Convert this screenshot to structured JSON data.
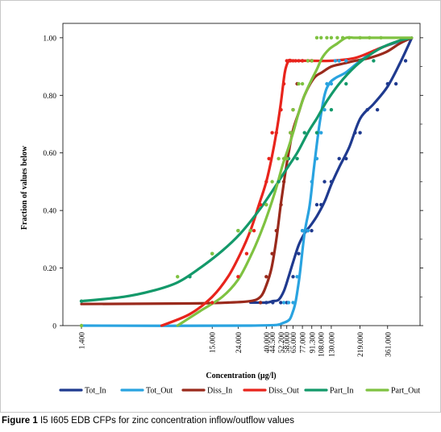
{
  "caption": {
    "label": "Figure 1",
    "text": "I5 I605 EDB CFPs for zinc concentration inflow/outflow values"
  },
  "chart_data": {
    "type": "line",
    "xlabel": "Concentration (µg/l)",
    "ylabel": "Fraction of values below",
    "x_scale": "log",
    "xlim": [
      1.0,
      650
    ],
    "ylim": [
      0,
      1.05
    ],
    "y_ticks": [
      "0",
      "0.20",
      "0.40",
      "0.60",
      "0.80",
      "1.00"
    ],
    "y_tick_values": [
      0,
      0.2,
      0.4,
      0.6,
      0.8,
      1.0
    ],
    "x_ticks": [
      "1.400",
      "15.000",
      "24.000",
      "40.000",
      "44.500",
      "52.200",
      "58.000",
      "65.000",
      "77.000",
      "91.300",
      "108.000",
      "130.000",
      "219.000",
      "361.000"
    ],
    "x_tick_values": [
      1.4,
      15,
      24,
      40,
      44.5,
      52.2,
      58,
      65,
      77,
      91.3,
      108,
      130,
      219,
      361
    ],
    "grid": false,
    "legend_position": "bottom",
    "series": [
      {
        "name": "Tot_In",
        "color": "#1f3a8f",
        "x": [
          30,
          40,
          45,
          50,
          55,
          60,
          65,
          72,
          80,
          90,
          100,
          115,
          130,
          150,
          180,
          220,
          280,
          360,
          450,
          560
        ],
        "y": [
          0.08,
          0.08,
          0.085,
          0.09,
          0.12,
          0.17,
          0.22,
          0.28,
          0.32,
          0.35,
          0.38,
          0.43,
          0.49,
          0.55,
          0.62,
          0.72,
          0.77,
          0.83,
          0.91,
          1.0
        ],
        "points_x": [
          40,
          45,
          52,
          58,
          65,
          72,
          77,
          85,
          91,
          100,
          108,
          115,
          130,
          150,
          170,
          200,
          219,
          250,
          300,
          361,
          420,
          500
        ],
        "points_y": [
          0.08,
          0.08,
          0.08,
          0.08,
          0.17,
          0.25,
          0.33,
          0.33,
          0.33,
          0.42,
          0.42,
          0.5,
          0.5,
          0.58,
          0.58,
          0.67,
          0.67,
          0.75,
          0.75,
          0.84,
          0.84,
          0.92
        ]
      },
      {
        "name": "Tot_Out",
        "color": "#29a3e0",
        "x": [
          1.4,
          30,
          55,
          65,
          72,
          80,
          88,
          95,
          105,
          115,
          125,
          140,
          170,
          220,
          300,
          400,
          560
        ],
        "y": [
          0.0,
          0.0,
          0.01,
          0.05,
          0.15,
          0.32,
          0.42,
          0.55,
          0.7,
          0.8,
          0.84,
          0.86,
          0.88,
          0.92,
          0.96,
          0.98,
          1.0
        ],
        "points_x": [
          55,
          60,
          65,
          70,
          77,
          85,
          91.3,
          100,
          108,
          115,
          120,
          130,
          140,
          150,
          170
        ],
        "points_y": [
          0.08,
          0.08,
          0.08,
          0.17,
          0.33,
          0.33,
          0.5,
          0.58,
          0.67,
          0.75,
          0.84,
          0.84,
          0.92,
          0.92,
          0.92
        ]
      },
      {
        "name": "Diss_In",
        "color": "#9a2a1c",
        "x": [
          1.4,
          10,
          20,
          30,
          36,
          40,
          44,
          48,
          52,
          56,
          60,
          65,
          72,
          80,
          95,
          110,
          130,
          160,
          200,
          260,
          350,
          450,
          560
        ],
        "y": [
          0.075,
          0.077,
          0.08,
          0.085,
          0.1,
          0.14,
          0.2,
          0.3,
          0.42,
          0.52,
          0.6,
          0.68,
          0.74,
          0.8,
          0.86,
          0.88,
          0.9,
          0.91,
          0.92,
          0.93,
          0.95,
          0.98,
          1.0
        ],
        "points_x": [
          36,
          40,
          44.5,
          48,
          52.2,
          55,
          58,
          62,
          65,
          70,
          77,
          91.3
        ],
        "points_y": [
          0.08,
          0.17,
          0.25,
          0.33,
          0.42,
          0.5,
          0.58,
          0.67,
          0.75,
          0.84,
          0.92,
          0.92
        ]
      },
      {
        "name": "Diss_Out",
        "color": "#e8241c",
        "x": [
          6,
          10,
          15,
          20,
          25,
          30,
          35,
          40,
          44,
          48,
          52,
          56,
          60,
          64,
          70,
          90,
          130,
          200,
          300,
          450,
          560
        ],
        "y": [
          0.0,
          0.04,
          0.1,
          0.17,
          0.25,
          0.33,
          0.42,
          0.5,
          0.58,
          0.67,
          0.77,
          0.88,
          0.92,
          0.92,
          0.92,
          0.92,
          0.92,
          0.93,
          0.96,
          0.99,
          1.0
        ],
        "points_x": [
          15,
          24,
          28,
          32,
          36,
          40,
          42,
          44.5,
          48,
          52.2,
          55,
          58,
          60,
          62,
          65,
          68,
          72,
          77,
          85,
          91.3
        ],
        "points_y": [
          0.08,
          0.17,
          0.25,
          0.33,
          0.42,
          0.5,
          0.58,
          0.67,
          0.67,
          0.75,
          0.84,
          0.92,
          0.92,
          0.92,
          0.92,
          0.92,
          0.92,
          0.92,
          0.92,
          0.92
        ]
      },
      {
        "name": "Part_In",
        "color": "#13996a",
        "x": [
          1.4,
          3,
          5,
          8,
          12,
          18,
          25,
          35,
          45,
          55,
          70,
          85,
          100,
          120,
          150,
          200,
          260,
          340,
          450,
          560
        ],
        "y": [
          0.085,
          0.1,
          0.12,
          0.15,
          0.2,
          0.26,
          0.32,
          0.4,
          0.47,
          0.53,
          0.6,
          0.67,
          0.72,
          0.78,
          0.84,
          0.9,
          0.94,
          0.97,
          0.99,
          1.0
        ],
        "points_x": [
          1.4,
          10,
          15,
          24,
          30,
          40,
          50,
          60,
          70,
          80,
          100,
          130,
          170,
          219,
          280
        ],
        "points_y": [
          0.085,
          0.17,
          0.25,
          0.33,
          0.33,
          0.42,
          0.5,
          0.58,
          0.58,
          0.67,
          0.67,
          0.75,
          0.84,
          0.92,
          0.92
        ]
      },
      {
        "name": "Part_Out",
        "color": "#7fc241",
        "x": [
          8,
          12,
          18,
          24,
          30,
          36,
          42,
          48,
          54,
          60,
          66,
          72,
          80,
          90,
          100,
          110,
          125,
          145,
          170,
          200,
          250,
          320,
          400,
          560
        ],
        "y": [
          0.0,
          0.05,
          0.1,
          0.16,
          0.24,
          0.32,
          0.4,
          0.48,
          0.56,
          0.62,
          0.68,
          0.74,
          0.8,
          0.85,
          0.89,
          0.93,
          0.96,
          0.98,
          1.0,
          1.0,
          1.0,
          1.0,
          1.0,
          1.0
        ],
        "points_x": [
          1.4,
          8,
          15,
          24,
          30,
          40,
          44.5,
          50,
          55,
          58,
          62,
          65,
          72,
          77,
          85,
          91.3,
          100,
          108,
          120,
          130,
          145,
          160,
          180,
          219,
          260,
          320
        ],
        "points_y": [
          0.0,
          0.17,
          0.25,
          0.33,
          0.33,
          0.42,
          0.5,
          0.58,
          0.58,
          0.58,
          0.67,
          0.75,
          0.84,
          0.84,
          0.92,
          0.92,
          1.0,
          1.0,
          1.0,
          1.0,
          1.0,
          1.0,
          1.0,
          1.0,
          1.0,
          1.0
        ]
      }
    ]
  }
}
